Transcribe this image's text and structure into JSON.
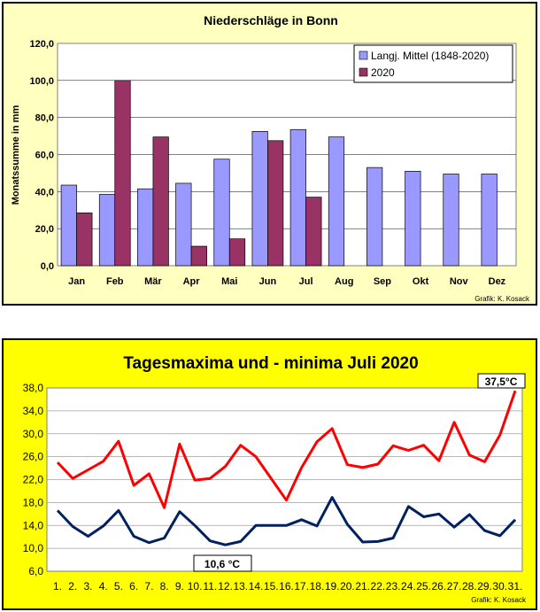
{
  "colors": {
    "panel1_bg": "#ffffc0",
    "panel2_bg": "#ffff00",
    "mean_bar": "#9999ff",
    "year_bar": "#993366",
    "max_line": "#ff0000",
    "min_line": "#002060"
  },
  "chart_data": [
    {
      "type": "bar",
      "title": "Niederschläge in Bonn",
      "ylabel": "Monatssumme in mm",
      "xlabel": "",
      "ylim": [
        0,
        120
      ],
      "yticks": [
        0,
        20,
        40,
        60,
        80,
        100,
        120
      ],
      "ytick_labels": [
        "0,0",
        "20,0",
        "40,0",
        "60,0",
        "80,0",
        "100,0",
        "120,0"
      ],
      "grid": true,
      "legend_position": "top-right",
      "categories": [
        "Jan",
        "Feb",
        "Mär",
        "Apr",
        "Mai",
        "Jun",
        "Jul",
        "Aug",
        "Sep",
        "Okt",
        "Nov",
        "Dez"
      ],
      "series": [
        {
          "name": "Langj. Mittel (1848-2020)",
          "values": [
            43.5,
            38.5,
            41.5,
            44.5,
            57.5,
            72.5,
            73.5,
            69.5,
            53,
            51,
            49.5,
            49.5
          ]
        },
        {
          "name": "2020",
          "values": [
            28.5,
            100,
            69.5,
            10.5,
            14.5,
            67.5,
            37,
            null,
            null,
            null,
            null,
            null
          ]
        }
      ],
      "credit": "Grafik: K. Kosack"
    },
    {
      "type": "line",
      "title": "Tagesmaxima und - minima Juli 2020",
      "ylim": [
        6,
        38
      ],
      "yticks": [
        6,
        10,
        14,
        18,
        22,
        26,
        30,
        34,
        38
      ],
      "ytick_labels": [
        "6,0",
        "10,0",
        "14,0",
        "18,0",
        "22,0",
        "26,0",
        "30,0",
        "34,0",
        "38,0"
      ],
      "grid": true,
      "x": [
        "1.",
        "2.",
        "3.",
        "4.",
        "5.",
        "6.",
        "7.",
        "8.",
        "9.",
        "10.",
        "11.",
        "12.",
        "13.",
        "14.",
        "15.",
        "16.",
        "17.",
        "18.",
        "19.",
        "20.",
        "21.",
        "22.",
        "23.",
        "24.",
        "25.",
        "26.",
        "27.",
        "28.",
        "29.",
        "30.",
        "31."
      ],
      "series": [
        {
          "values": [
            25,
            22.2,
            23.7,
            25.2,
            28.7,
            21,
            23,
            17.1,
            28.2,
            21.9,
            22.2,
            24.3,
            28,
            26,
            22.2,
            18.4,
            24.1,
            28.6,
            30.9,
            24.6,
            24.1,
            24.7,
            27.9,
            27.1,
            28,
            25.3,
            32,
            26.3,
            25.1,
            29.8,
            37.5
          ]
        },
        {
          "values": [
            16.6,
            13.8,
            12.1,
            13.9,
            16.6,
            12.1,
            11,
            11.8,
            16.4,
            14,
            11.3,
            10.6,
            11.2,
            14,
            14,
            14,
            15,
            13.9,
            18.9,
            14.2,
            11.1,
            11.2,
            11.8,
            17.3,
            15.5,
            16,
            13.7,
            15.9,
            13.1,
            12.2,
            15
          ]
        }
      ],
      "annotations": [
        "37,5°C",
        "10,6 °C"
      ],
      "credit": "Grafik: K. Kosack"
    }
  ]
}
